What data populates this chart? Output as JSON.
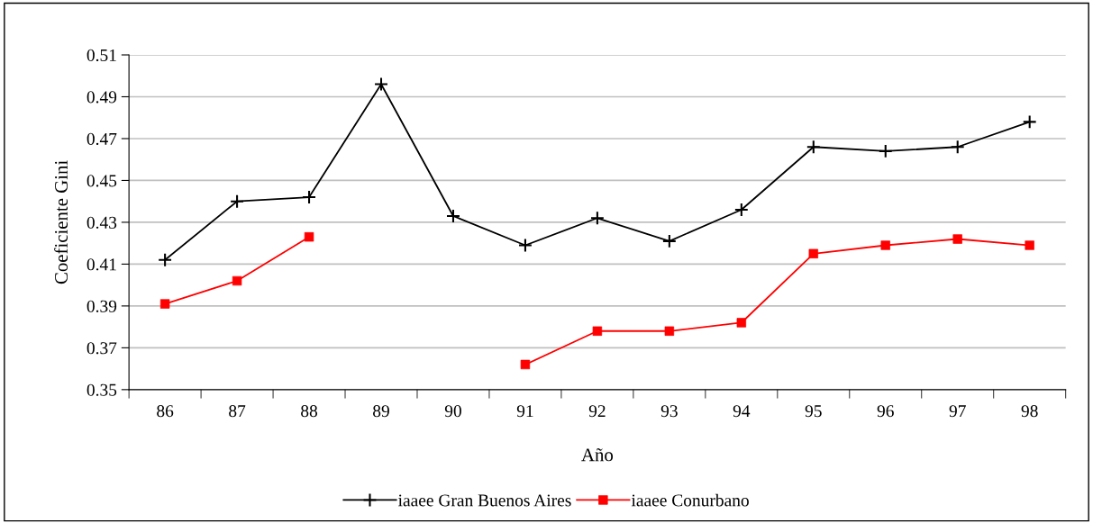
{
  "chart_data": {
    "type": "line",
    "xlabel": "Año",
    "ylabel": "Coeficiente Gini",
    "categories": [
      "86",
      "87",
      "88",
      "89",
      "90",
      "91",
      "92",
      "93",
      "94",
      "95",
      "96",
      "97",
      "98"
    ],
    "series": [
      {
        "name": "iaaee Gran Buenos Aires",
        "color": "#000000",
        "marker": "cross",
        "values": [
          0.412,
          0.44,
          0.442,
          0.496,
          0.433,
          0.419,
          0.432,
          0.421,
          0.436,
          0.466,
          0.464,
          0.466,
          0.478
        ]
      },
      {
        "name": "iaaee Conurbano",
        "color": "#ff0000",
        "marker": "square",
        "values": [
          0.391,
          0.402,
          0.423,
          null,
          null,
          0.362,
          0.378,
          0.378,
          0.382,
          0.415,
          0.419,
          0.422,
          0.419
        ]
      }
    ],
    "ylim": [
      0.35,
      0.51
    ],
    "yticks": [
      0.35,
      0.37,
      0.39,
      0.41,
      0.43,
      0.45,
      0.47,
      0.49,
      0.51
    ],
    "grid": "y",
    "legend": "bottom",
    "line_style": "solid"
  }
}
